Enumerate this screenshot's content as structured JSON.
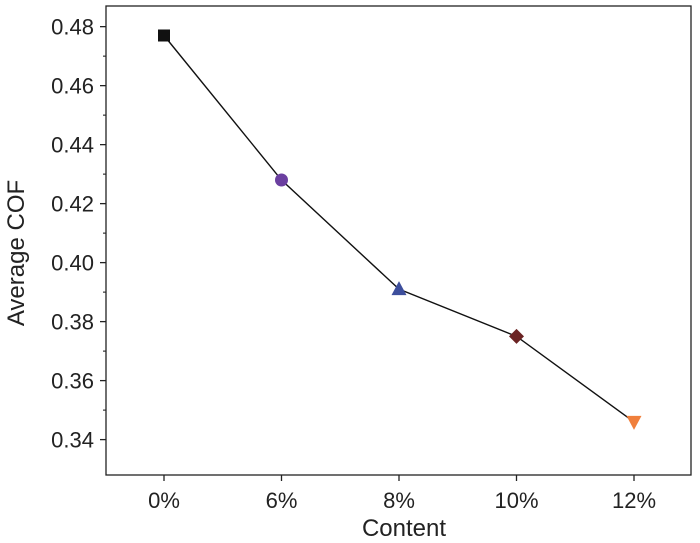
{
  "chart_data": {
    "type": "line",
    "xlabel": "Content",
    "ylabel": "Average COF",
    "categories": [
      "0%",
      "6%",
      "8%",
      "10%",
      "12%"
    ],
    "series": [
      {
        "values": [
          0.477,
          0.428,
          0.391,
          0.375,
          0.346
        ],
        "markers": [
          {
            "shape": "square",
            "color": "#111111"
          },
          {
            "shape": "circle",
            "color": "#6b3fa0"
          },
          {
            "shape": "triangle-up",
            "color": "#3d4e9c"
          },
          {
            "shape": "diamond",
            "color": "#6b2323"
          },
          {
            "shape": "triangle-down",
            "color": "#f07f3c"
          }
        ],
        "line_color": "#111111"
      }
    ],
    "ylim": [
      0.328,
      0.487
    ],
    "yticks": [
      0.34,
      0.36,
      0.38,
      0.4,
      0.42,
      0.44,
      0.46,
      0.48
    ],
    "ytick_labels": [
      "0.34",
      "0.36",
      "0.38",
      "0.40",
      "0.42",
      "0.44",
      "0.46",
      "0.48"
    ],
    "grid": false,
    "legend": "none"
  }
}
